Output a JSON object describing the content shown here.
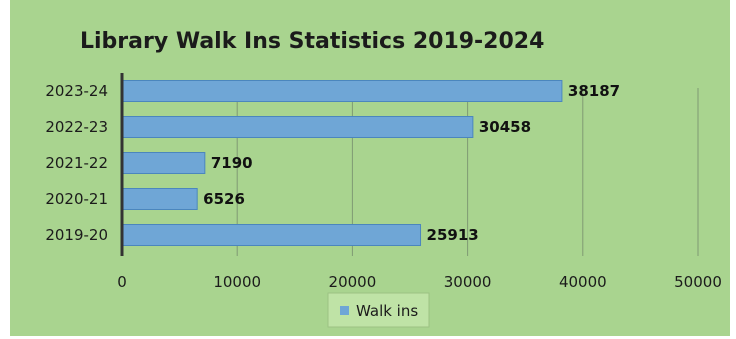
{
  "chart_data": {
    "type": "bar",
    "orientation": "horizontal",
    "title": "Library Walk Ins Statistics 2019-2024",
    "categories": [
      "2023-24",
      "2022-23",
      "2021-22",
      "2020-21",
      "2019-20"
    ],
    "series": [
      {
        "name": "Walk ins",
        "values": [
          38187,
          30458,
          7190,
          6526,
          25913
        ]
      }
    ],
    "data_labels": [
      "38187",
      "30458",
      "7190",
      "6526",
      "25913"
    ],
    "xlim": [
      0,
      50000
    ],
    "x_ticks": [
      0,
      10000,
      20000,
      30000,
      40000,
      50000
    ],
    "grid": true,
    "legend_position": "bottom",
    "colors": {
      "background": "#a9d48f",
      "bar": "#6fa6d6",
      "bar_stroke": "#4b86bd",
      "axis": "#333333",
      "grid": "#7f9a73",
      "legend_box": "#bfe3a6"
    }
  }
}
